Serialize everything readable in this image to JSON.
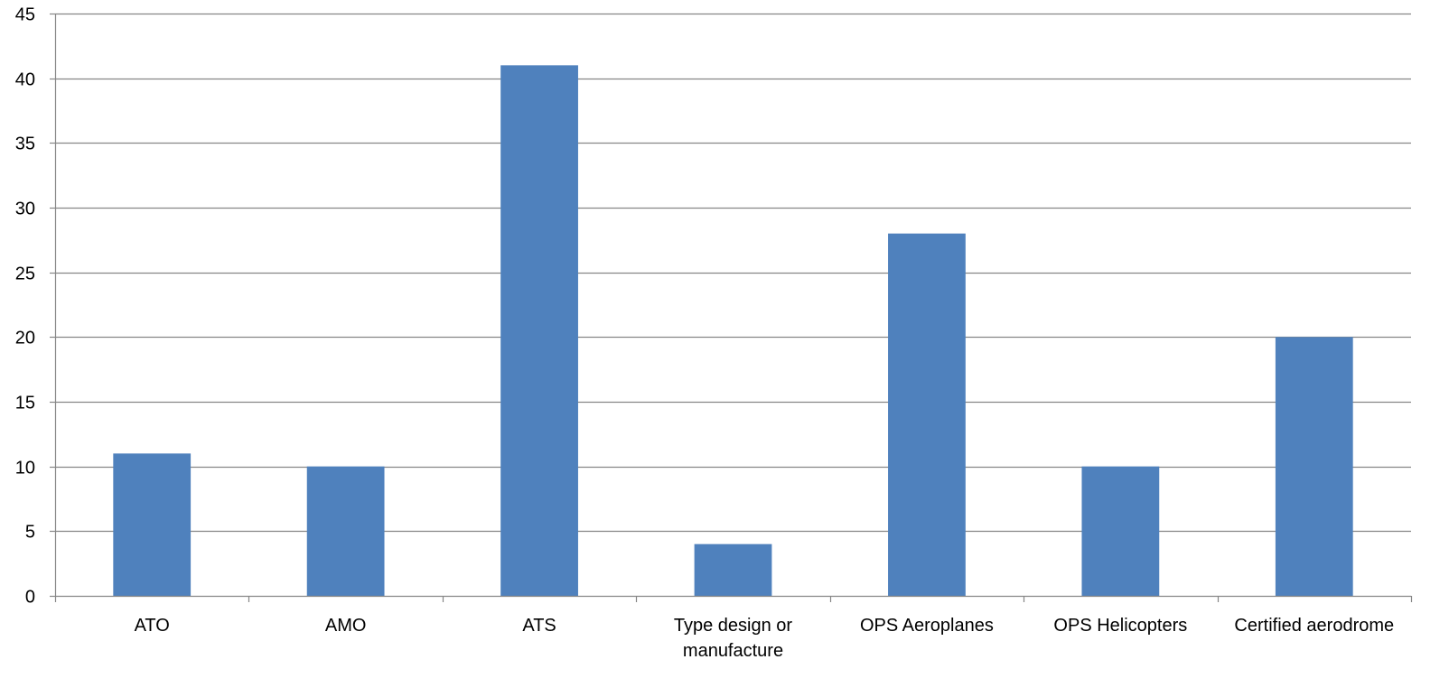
{
  "chart_data": {
    "type": "bar",
    "title": "",
    "xlabel": "",
    "ylabel": "",
    "categories": [
      [
        "ATO"
      ],
      [
        "AMO"
      ],
      [
        "ATS"
      ],
      [
        "Type design or",
        "manufacture"
      ],
      [
        "OPS Aeroplanes"
      ],
      [
        "OPS Helicopters"
      ],
      [
        "Certified aerodrome"
      ]
    ],
    "values": [
      11,
      10,
      41,
      4,
      28,
      10,
      20
    ],
    "ylim": [
      0,
      45
    ],
    "yticks": [
      "0",
      "5",
      "10",
      "15",
      "20",
      "25",
      "30",
      "35",
      "40",
      "45"
    ],
    "grid": true,
    "legend": "none",
    "colors": {
      "bar": "#4f81bd",
      "grid": "#868686",
      "axis": "#868686",
      "text": "#000000"
    }
  }
}
